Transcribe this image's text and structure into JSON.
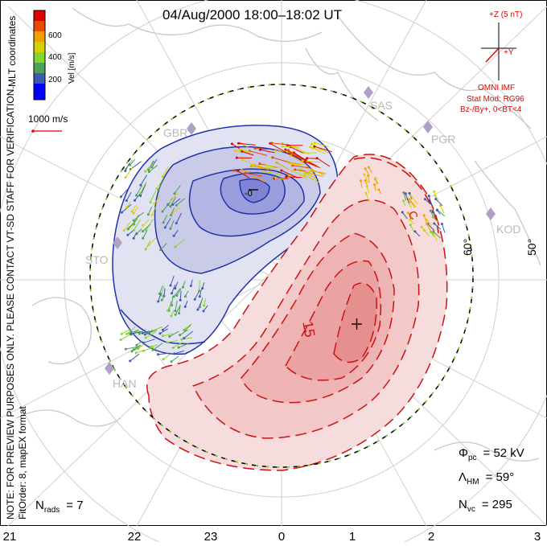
{
  "title": "04/Aug/2000 18:00–18:02 UT",
  "colorbar": {
    "unit_label": "Vel [m/s]",
    "ticks": [
      "600",
      "400",
      "200"
    ],
    "colors": [
      "#0000ff",
      "#3c5ab0",
      "#4ea05a",
      "#86d62a",
      "#d7d000",
      "#f0a000",
      "#e84a00",
      "#e00000"
    ]
  },
  "side_text": {
    "coordinates": "MLT coordinates",
    "note": "NOTE: FOR PREVIEW PURPOSES ONLY. PLEASE CONTACT VT-SD STAFF FOR VERIFICATION.",
    "fit": "FitOrder: 8, mapEX format"
  },
  "scale_vector": {
    "label": "1000 m/s"
  },
  "imf": {
    "z_label": "+Z (5 nT)",
    "y_label": "+Y",
    "source": "OMNI IMF",
    "model": "Stat Mod: RG96",
    "condition": "Bz-/By+, 0<BT<4"
  },
  "stations": [
    "GBR",
    "SAS",
    "PGR",
    "STO",
    "KOD",
    "HAN"
  ],
  "latitude_labels": [
    "60°",
    "50°"
  ],
  "contour_labels": [
    "15",
    "-0",
    "C"
  ],
  "stats": {
    "phi_pc": {
      "symbol": "Φ",
      "sub": "pc",
      "value": "= 52 kV"
    },
    "lambda_hm": {
      "symbol": "Λ",
      "sub": "HM",
      "value": "= 59°"
    },
    "n_vc": {
      "symbol": "N",
      "sub": "vc",
      "value": "= 295"
    },
    "n_rads": {
      "symbol": "N",
      "sub": "rads",
      "value": "= 7"
    }
  },
  "mlt_axis": [
    "21",
    "22",
    "23",
    "0",
    "1",
    "2",
    "3"
  ],
  "colors": {
    "negative_cell": "#2233aa",
    "positive_cell": "#cc1111",
    "boundary": "#000000",
    "imf": "#e00000",
    "station": "#b0a0c8"
  }
}
